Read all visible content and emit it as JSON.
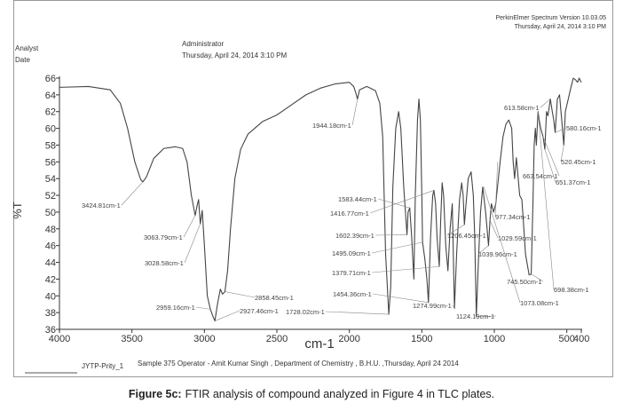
{
  "chart_data": {
    "type": "line",
    "header": {
      "software": "PerkinElmer Spectrum Version 10.03.05",
      "software_date": "Thursday, April 24, 2014 3:10 PM",
      "analyst_label": "Analyst",
      "date_label": "Date",
      "analyst": "Administrator",
      "date": "Thursday, April 24, 2014 3:10 PM"
    },
    "ylabel": "%T",
    "xlabel": "cm-1",
    "xlim": [
      4000,
      400
    ],
    "xticks": [
      4000,
      3500,
      3000,
      2500,
      2000,
      1500,
      1000,
      500,
      400
    ],
    "ylim": [
      36,
      66
    ],
    "yticks": [
      36,
      38,
      40,
      42,
      44,
      46,
      48,
      50,
      52,
      54,
      56,
      58,
      60,
      62,
      64,
      66
    ],
    "x": [
      4000,
      3800,
      3650,
      3580,
      3530,
      3480,
      3440,
      3424.81,
      3400,
      3350,
      3280,
      3200,
      3150,
      3120,
      3090,
      3063.79,
      3050,
      3040,
      3028.58,
      3015,
      3000,
      2980,
      2959.16,
      2940,
      2927.46,
      2910,
      2890,
      2875,
      2858.45,
      2840,
      2820,
      2790,
      2750,
      2700,
      2600,
      2500,
      2400,
      2300,
      2200,
      2100,
      2000,
      1970,
      1955,
      1944.18,
      1930,
      1880,
      1820,
      1790,
      1770,
      1750,
      1728.02,
      1715,
      1700,
      1680,
      1660,
      1645,
      1625,
      1602.39,
      1595,
      1583.44,
      1570,
      1555,
      1545,
      1530,
      1520,
      1510,
      1500,
      1495.09,
      1480,
      1465,
      1454.36,
      1440,
      1425,
      1416.77,
      1405,
      1395,
      1379.71,
      1370,
      1360,
      1350,
      1335,
      1320,
      1305,
      1290,
      1274.99,
      1260,
      1240,
      1225,
      1215,
      1206.45,
      1195,
      1180,
      1160,
      1145,
      1135,
      1124.19,
      1110,
      1095,
      1080,
      1060,
      1039.96,
      1030,
      1020,
      1005,
      990,
      960,
      940,
      920,
      900,
      880,
      870,
      860,
      848,
      840,
      825,
      810,
      800,
      785,
      760,
      745.5,
      735,
      725,
      717,
      710,
      698.38,
      690,
      680,
      663.54,
      651.37,
      640,
      630,
      613.58,
      600,
      590,
      580.16,
      565,
      550,
      535,
      520.45,
      510,
      490,
      470,
      455,
      440,
      425,
      415,
      400
    ],
    "series": [
      {
        "color": "#444444",
        "values": [
          64.9,
          65.0,
          64.6,
          63,
          60,
          56,
          53.9,
          53.6,
          54.2,
          56.4,
          57.6,
          57.8,
          57.6,
          56,
          52,
          49.6,
          50.8,
          51.5,
          48.6,
          50.2,
          46,
          40,
          38.4,
          37.5,
          37.0,
          39,
          40.8,
          40.2,
          40.5,
          43,
          48,
          54,
          57.5,
          59.3,
          60.8,
          61.6,
          62.8,
          64,
          64.8,
          65.3,
          65.5,
          65.0,
          64.2,
          63.5,
          64.6,
          65.0,
          64.5,
          63,
          59,
          45,
          37.8,
          41,
          53,
          60,
          62,
          60,
          53,
          47.3,
          50,
          50.5,
          47,
          42,
          52,
          61,
          63.5,
          61,
          52,
          46.4,
          44.5,
          42,
          39.2,
          47,
          52,
          52.6,
          51,
          47,
          43.5,
          49,
          53.5,
          52,
          46,
          43,
          48,
          51,
          38.5,
          45,
          51.5,
          53.5,
          52,
          48.5,
          51,
          54,
          54.8,
          52,
          47,
          37.5,
          44,
          50,
          53,
          50,
          46,
          49,
          51,
          50,
          51,
          56,
          59,
          60.5,
          61,
          60,
          56,
          54,
          56.5,
          55,
          52,
          51.5,
          49,
          45,
          42.5,
          42.6,
          50,
          58,
          60,
          58,
          62,
          61,
          60,
          59,
          57.5,
          62,
          61.5,
          63.5,
          62,
          61,
          59.5,
          63.5,
          64,
          61,
          58,
          62,
          63.5,
          65,
          66,
          65.8,
          65.5,
          66,
          65.5
        ]
      }
    ],
    "peaks": {
      "labels": [
        "3424.81cm-1",
        "3063.79cm-1",
        "3028.58cm-1",
        "2959.16cm-1",
        "2927.46cm-1",
        "2858.45cm-1",
        "1944.18cm-1",
        "1728.02cm-1",
        "1602.39cm-1",
        "1583.44cm-1",
        "1416.77cm-1",
        "1495.09cm-1",
        "1379.71cm-1",
        "1454.36cm-1",
        "1274.99cm-1",
        "1206.45cm-1",
        "1124.19cm-1",
        "1039.96cm-1",
        "1029.59cm-1",
        "977.34cm-1",
        "1073.08cm-1",
        "745.50cm-1",
        "698.38cm-1",
        "663.54cm-1",
        "651.37cm-1",
        "613.58cm-1",
        "580.16cm-1",
        "520.45cm-1"
      ],
      "x": [
        3424.81,
        3063.79,
        3028.58,
        2959.16,
        2927.46,
        2858.45,
        1944.18,
        1728.02,
        1602.39,
        1583.44,
        1416.77,
        1495.09,
        1379.71,
        1454.36,
        1274.99,
        1206.45,
        1124.19,
        1039.96,
        1029.59,
        977.34,
        1073.08,
        745.5,
        698.38,
        663.54,
        651.37,
        613.58,
        580.16,
        520.45
      ],
      "y": [
        53.6,
        49.6,
        48.6,
        38.4,
        37.0,
        40.5,
        63.5,
        37.8,
        47.3,
        50.5,
        52.6,
        46.4,
        43.5,
        39.2,
        38.5,
        48.5,
        37.5,
        46,
        49,
        56,
        53,
        42.6,
        62,
        59,
        57.5,
        63.5,
        59.5,
        58
      ]
    },
    "footer_id": "JYTP-Prity_1",
    "footer": "Sample 375 Operator - Amit Kumar Singh , Department of Chemistry , B.H.U. ,Thursday, April 24 2014",
    "caption_label": "Figure 5c:",
    "caption": "FTIR analysis of compound analyzed in Figure 4 in TLC plates."
  }
}
